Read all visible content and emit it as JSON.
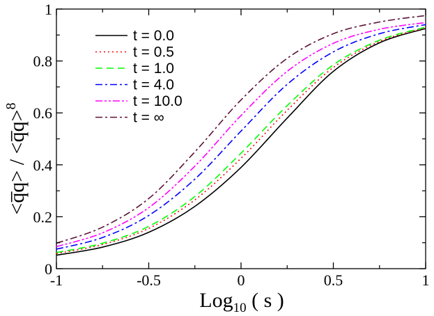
{
  "chart_data": {
    "type": "line",
    "title": "",
    "xlabel": {
      "base": "Log",
      "subscript": "10",
      "rest": " ( s )"
    },
    "ylabel": "<q̅q> / <q̅q>",
    "ylabel_superscript": "8",
    "xlim": [
      -1,
      1
    ],
    "ylim": [
      0,
      1
    ],
    "x_ticks": [
      -1,
      -0.5,
      0,
      0.5,
      1
    ],
    "x_tick_labels": [
      "-1",
      "-0.5",
      "0",
      "0.5",
      "1"
    ],
    "y_ticks": [
      0,
      0.2,
      0.4,
      0.6,
      0.8,
      1
    ],
    "y_tick_labels": [
      "0",
      "0.2",
      "0.4",
      "0.6",
      "0.8",
      "1"
    ],
    "grid": false,
    "legend_position": "top-left",
    "x": [
      -1.0,
      -0.75,
      -0.5,
      -0.25,
      0.0,
      0.25,
      0.5,
      0.75,
      1.0
    ],
    "series": [
      {
        "name": "t =  0.0",
        "color": "#000000",
        "dash": "solid",
        "values": [
          0.052,
          0.083,
          0.14,
          0.24,
          0.39,
          0.58,
          0.76,
          0.87,
          0.925
        ]
      },
      {
        "name": "t =  0.5",
        "color": "#ff0000",
        "dash": "dotted",
        "values": [
          0.058,
          0.093,
          0.155,
          0.265,
          0.425,
          0.61,
          0.775,
          0.875,
          0.928
        ]
      },
      {
        "name": "t =  1.0",
        "color": "#00ff00",
        "dash": "dashed",
        "values": [
          0.062,
          0.098,
          0.163,
          0.278,
          0.445,
          0.628,
          0.785,
          0.88,
          0.93
        ]
      },
      {
        "name": "t =  4.0",
        "color": "#0000ff",
        "dash": "dashdot",
        "values": [
          0.075,
          0.12,
          0.205,
          0.345,
          0.53,
          0.71,
          0.835,
          0.905,
          0.94
        ]
      },
      {
        "name": "t =  10.0",
        "color": "#ff00ff",
        "dash": "dashdotdot",
        "values": [
          0.085,
          0.138,
          0.235,
          0.395,
          0.59,
          0.76,
          0.868,
          0.922,
          0.948
        ]
      },
      {
        "name": "t =  ∞",
        "color": "#5a1035",
        "dash": "dashdot",
        "values": [
          0.098,
          0.16,
          0.27,
          0.45,
          0.65,
          0.81,
          0.905,
          0.95,
          0.975
        ]
      }
    ]
  }
}
